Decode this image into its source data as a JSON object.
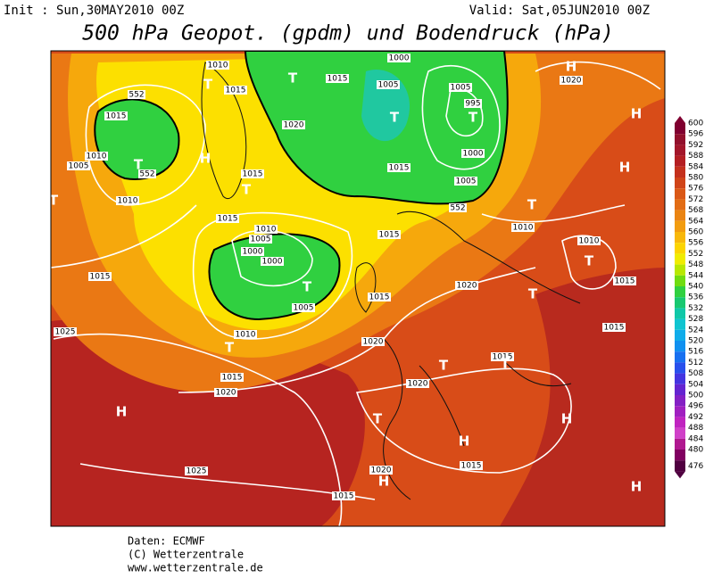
{
  "header": {
    "init": "Init : Sun,30MAY2010 00Z",
    "valid": "Valid: Sat,05JUN2010 00Z",
    "title": "500 hPa Geopot. (gpdm) und Bodendruck (hPa)"
  },
  "colorbar": {
    "levels": [
      600,
      596,
      592,
      588,
      584,
      580,
      576,
      572,
      568,
      564,
      560,
      556,
      552,
      548,
      544,
      540,
      536,
      532,
      528,
      524,
      520,
      516,
      512,
      508,
      504,
      500,
      496,
      492,
      488,
      484,
      480,
      476
    ],
    "colors": [
      "#800030",
      "#92102c",
      "#a3162a",
      "#b41e22",
      "#c4301c",
      "#d04418",
      "#da5816",
      "#e26c14",
      "#ea8412",
      "#f29c10",
      "#f8b80a",
      "#fcd400",
      "#f0ec00",
      "#b8e800",
      "#70dc10",
      "#30d040",
      "#18c870",
      "#10c8a8",
      "#10c4d0",
      "#10acea",
      "#1090f0",
      "#1870f0",
      "#2850ec",
      "#4434e0",
      "#6424d0",
      "#8420c4",
      "#a020c0",
      "#c024c0",
      "#d040c8",
      "#b01890",
      "#800060",
      "#500040"
    ]
  },
  "map": {
    "labels": [
      "1010",
      "1015",
      "T",
      "552",
      "1015",
      "T",
      "1010",
      "1005",
      "552",
      "H",
      "T",
      "1010",
      "1015",
      "T",
      "1020",
      "T",
      "1015",
      "1000",
      "1005",
      "T",
      "1005",
      "995",
      "T",
      "1000",
      "1015",
      "1005",
      "552",
      "H",
      "1020",
      "H",
      "H",
      "T",
      "1010",
      "1015",
      "1010",
      "1005",
      "1000",
      "1000",
      "T",
      "1005",
      "1015",
      "1015",
      "1020",
      "1010",
      "T",
      "T",
      "1015",
      "1015",
      "1025",
      "T",
      "1010",
      "1015",
      "1020",
      "1020",
      "T",
      "1015",
      "T",
      "1020",
      "H",
      "T",
      "H",
      "H",
      "1025",
      "1015",
      "1020",
      "H",
      "1015",
      "H",
      "1015"
    ]
  },
  "footer": {
    "source": "Daten: ECMWF",
    "copyright": "(C) Wetterzentrale",
    "url": "www.wetterzentrale.de"
  }
}
